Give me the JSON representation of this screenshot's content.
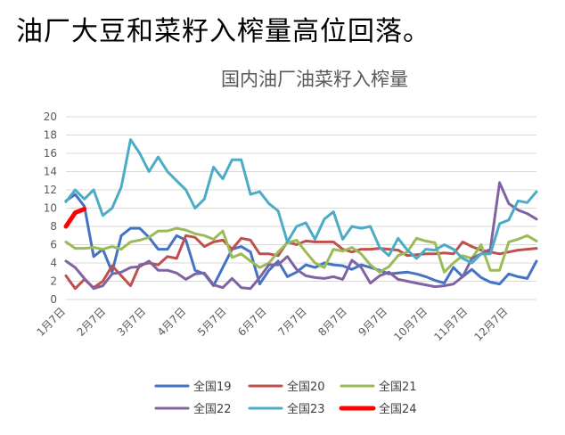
{
  "headline": "油厂大豆和菜籽入榨量高位回落。",
  "chart_data": {
    "type": "line",
    "title": "国内油厂油菜籽入榨量",
    "ylim": [
      0,
      20
    ],
    "yticks": [
      0,
      2,
      4,
      6,
      8,
      10,
      12,
      14,
      16,
      18,
      20
    ],
    "x_labels": [
      "1月7日",
      "2月7日",
      "3月7日",
      "4月7日",
      "5月7日",
      "6月7日",
      "7月7日",
      "8月7日",
      "9月7日",
      "10月7日",
      "11月7日",
      "12月7日"
    ],
    "weeks": 52,
    "grid": true,
    "legend_position": "bottom",
    "series": [
      {
        "name": "全国19",
        "color": "#4472C4",
        "values": [
          10.8,
          11.5,
          10.2,
          4.7,
          5.5,
          3.0,
          7.0,
          7.8,
          7.8,
          6.8,
          5.5,
          5.5,
          7.0,
          6.5,
          3.2,
          2.8,
          1.5,
          3.5,
          5.5,
          5.8,
          5.2,
          1.7,
          3.2,
          4.2,
          2.5,
          3.0,
          3.8,
          3.5,
          4.0,
          3.8,
          3.7,
          3.3,
          3.8,
          3.5,
          3.2,
          2.8,
          2.9,
          3.0,
          2.8,
          2.5,
          2.1,
          1.8,
          3.5,
          2.5,
          3.3,
          2.4,
          1.9,
          1.7,
          2.8,
          2.5,
          2.3,
          4.2
        ]
      },
      {
        "name": "全国20",
        "color": "#C0504D",
        "values": [
          2.6,
          1.2,
          2.2,
          1.3,
          2.0,
          3.7,
          2.6,
          1.5,
          3.8,
          4.0,
          3.8,
          4.7,
          4.5,
          7.0,
          6.8,
          5.8,
          6.3,
          6.5,
          5.5,
          6.7,
          6.5,
          5.0,
          5.0,
          4.8,
          6.3,
          6.0,
          6.4,
          6.3,
          6.3,
          6.3,
          5.5,
          5.2,
          5.5,
          5.5,
          5.6,
          5.5,
          5.4,
          4.8,
          4.9,
          5.0,
          5.0,
          5.1,
          5.0,
          6.3,
          5.8,
          5.4,
          5.2,
          5.0,
          5.2,
          5.4,
          5.5,
          5.6
        ]
      },
      {
        "name": "全国21",
        "color": "#9BBB59",
        "values": [
          6.3,
          5.6,
          5.6,
          5.7,
          5.5,
          5.8,
          5.5,
          6.3,
          6.5,
          6.8,
          7.5,
          7.5,
          7.8,
          7.6,
          7.2,
          7.0,
          6.6,
          7.5,
          4.6,
          5.0,
          4.2,
          3.5,
          4.0,
          5.2,
          6.2,
          6.5,
          5.2,
          4.0,
          3.5,
          5.5,
          5.3,
          5.7,
          5.0,
          3.8,
          3.0,
          3.6,
          4.8,
          5.2,
          6.7,
          6.4,
          6.2,
          3.0,
          4.0,
          4.8,
          4.5,
          6.0,
          3.2,
          3.2,
          6.3,
          6.6,
          7.0,
          6.4
        ]
      },
      {
        "name": "全国22",
        "color": "#8064A2",
        "values": [
          4.2,
          3.5,
          2.3,
          1.2,
          1.5,
          2.8,
          3.0,
          3.5,
          3.6,
          4.2,
          3.2,
          3.2,
          2.9,
          2.2,
          2.8,
          2.9,
          1.6,
          1.3,
          2.3,
          1.3,
          1.2,
          2.4,
          3.8,
          3.8,
          4.7,
          3.3,
          2.6,
          2.4,
          2.3,
          2.5,
          2.2,
          4.3,
          3.5,
          1.8,
          2.6,
          3.0,
          2.2,
          2.0,
          1.8,
          1.6,
          1.4,
          1.5,
          1.7,
          2.5,
          4.5,
          5.0,
          5.5,
          12.8,
          10.5,
          9.8,
          9.4,
          8.8
        ]
      },
      {
        "name": "全国23",
        "color": "#4BACC6",
        "values": [
          10.7,
          12.0,
          11.0,
          12.0,
          9.2,
          10.0,
          12.3,
          17.5,
          16.0,
          14.0,
          15.6,
          14.0,
          13.0,
          12.0,
          10.0,
          11.0,
          14.5,
          13.2,
          15.3,
          15.3,
          11.5,
          11.8,
          10.5,
          9.7,
          6.3,
          8.0,
          8.4,
          6.6,
          8.8,
          9.6,
          6.6,
          8.0,
          7.8,
          8.0,
          5.7,
          4.8,
          6.7,
          5.4,
          4.5,
          5.5,
          5.4,
          6.0,
          5.5,
          4.5,
          4.0,
          5.0,
          5.0,
          8.3,
          8.7,
          10.8,
          10.6,
          11.8
        ]
      },
      {
        "name": "全国24",
        "color": "#FF0000",
        "values": [
          8.0,
          9.5,
          9.9
        ]
      }
    ]
  }
}
